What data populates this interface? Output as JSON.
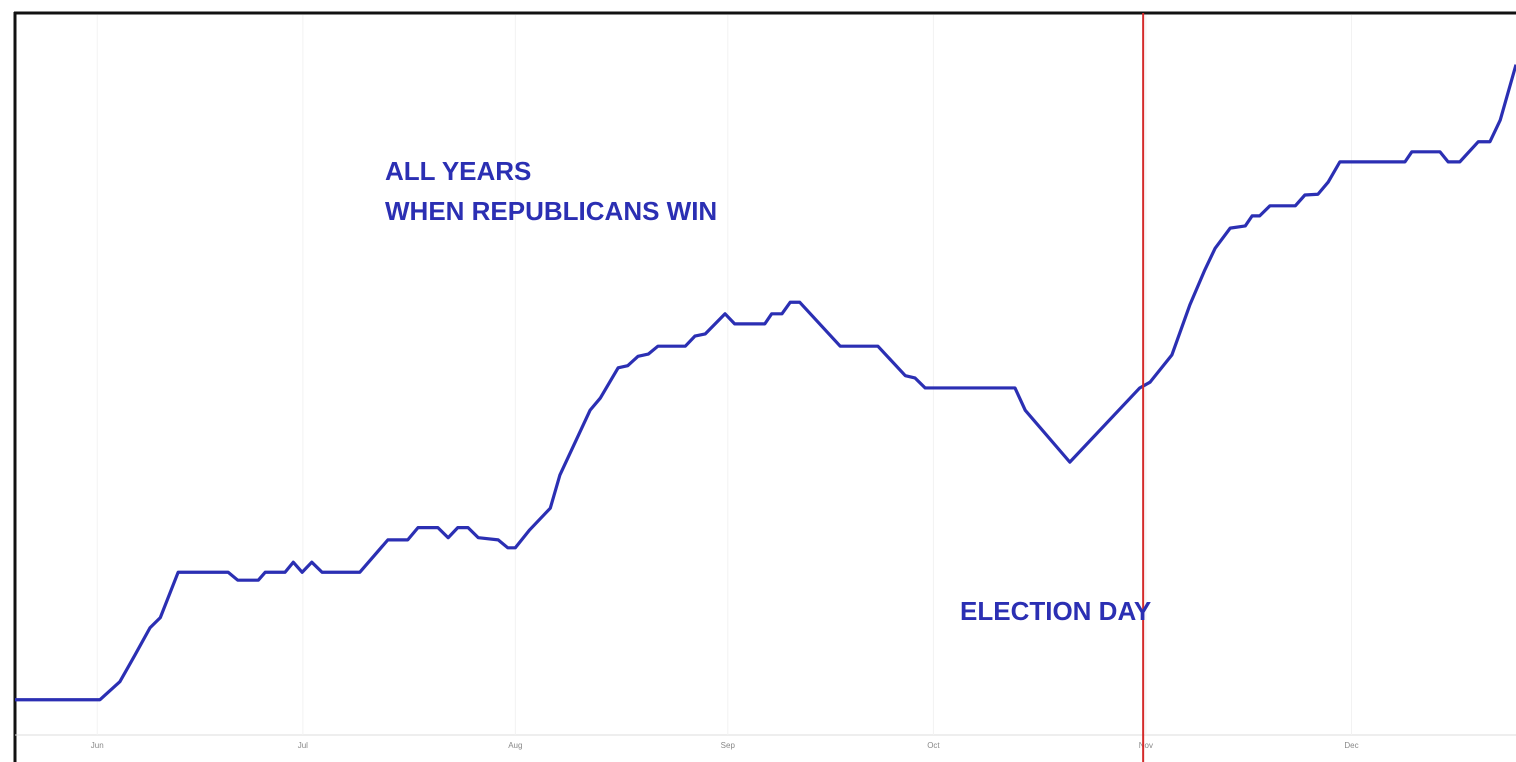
{
  "chart_data": {
    "type": "line",
    "annotations": [
      "ALL YEARS",
      "WHEN REPUBLICANS WIN"
    ],
    "vline": {
      "x": 152.6,
      "label": "ELECTION DAY",
      "color": "#d42a2a"
    },
    "x": [
      -12,
      0.4,
      3.3,
      5.5,
      7.7,
      9.2,
      11.8,
      19.1,
      20.5,
      23.5,
      24.5,
      27.4,
      28.6,
      29.9,
      31.3,
      32.8,
      38.3,
      42.4,
      45.3,
      46.8,
      49.7,
      51.2,
      52.6,
      54.1,
      55.6,
      58.5,
      59.9,
      61.0,
      63.1,
      66.1,
      67.5,
      71.9,
      73.4,
      76.0,
      77.4,
      78.9,
      80.4,
      81.8,
      85.8,
      87.2,
      88.7,
      91.6,
      93.0,
      97.4,
      98.4,
      99.9,
      101.1,
      102.5,
      108.4,
      113.9,
      117.9,
      119.3,
      120.8,
      133.9,
      135.4,
      141.9,
      152.1,
      153.6,
      156.8,
      159.4,
      161.6,
      163.1,
      165.3,
      167.5,
      168.5,
      169.6,
      171.1,
      174.8,
      176.2,
      178.1,
      179.6,
      181.3,
      190.8,
      191.8,
      195.9,
      197.1,
      198.8,
      201.5,
      203.2,
      204.7,
      207.0
    ],
    "series": [
      {
        "color": "#2b2fb3",
        "values": [
          4.9,
          4.9,
          7.4,
          11.1,
          14.9,
          16.3,
          22.6,
          22.6,
          21.5,
          21.5,
          22.6,
          22.6,
          24.0,
          22.6,
          24.0,
          22.6,
          22.6,
          27.1,
          27.1,
          28.8,
          28.8,
          27.4,
          28.8,
          28.8,
          27.4,
          27.1,
          26.0,
          26.0,
          28.5,
          31.5,
          36.1,
          45.1,
          46.8,
          51.0,
          51.3,
          52.6,
          52.9,
          54.0,
          54.0,
          55.4,
          55.7,
          58.5,
          57.1,
          57.1,
          58.5,
          58.5,
          60.1,
          60.1,
          54.0,
          54.0,
          49.9,
          49.6,
          48.2,
          48.2,
          45.1,
          37.9,
          48.2,
          49.0,
          52.8,
          59.7,
          64.6,
          67.6,
          70.4,
          70.7,
          72.1,
          72.1,
          73.5,
          73.5,
          75.0,
          75.1,
          76.8,
          79.6,
          79.6,
          81.0,
          81.0,
          79.6,
          79.6,
          82.4,
          82.4,
          85.4,
          93.1
        ]
      }
    ],
    "xlim": [
      -12,
      207
    ],
    "xticks": [
      {
        "value": 0,
        "label": "Jun"
      },
      {
        "value": 30,
        "label": "Jul"
      },
      {
        "value": 61,
        "label": "Aug"
      },
      {
        "value": 92,
        "label": "Sep"
      },
      {
        "value": 122,
        "label": "Oct"
      },
      {
        "value": 153,
        "label": "Nov"
      },
      {
        "value": 183,
        "label": "Dec"
      }
    ],
    "ylim": [
      0,
      100
    ],
    "grid": true
  }
}
